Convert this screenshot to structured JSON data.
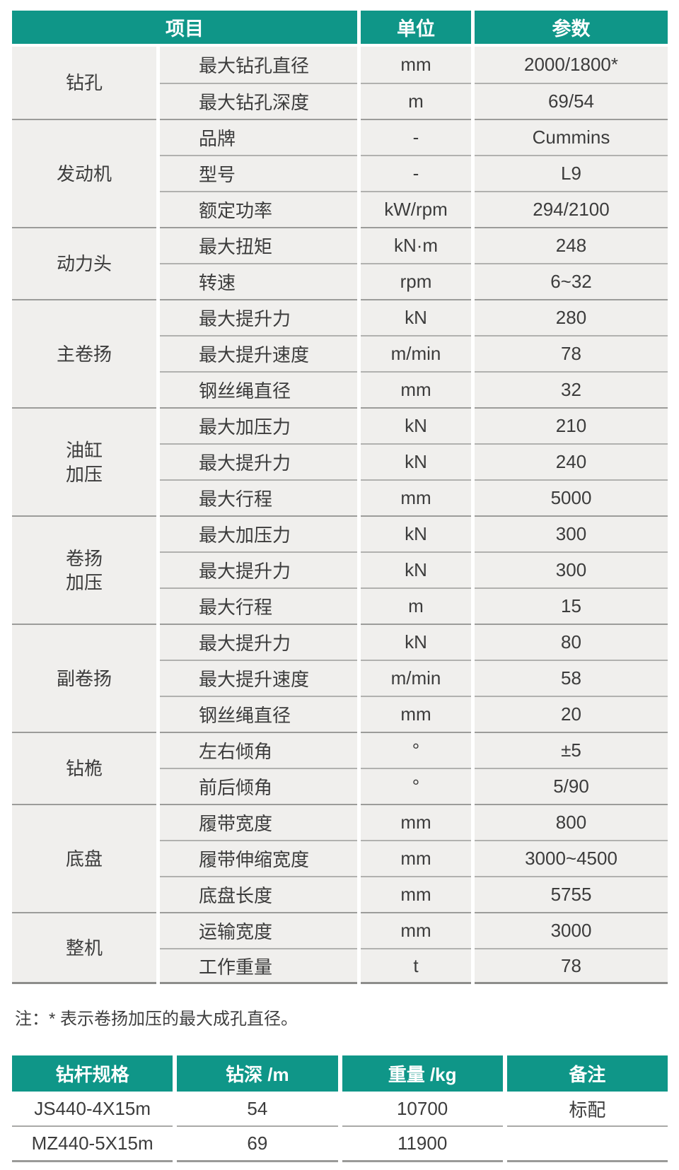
{
  "theme": {
    "header_bg": "#0f9688",
    "header_text": "#ffffff",
    "body_bg": "#f0efed",
    "text": "#3c3c3c",
    "row_line": "#b1b1af",
    "group_line": "#9c9c9a",
    "bottom_line": "#8d8d8b"
  },
  "spec_table": {
    "headers": {
      "item": "项目",
      "unit": "单位",
      "value": "参数"
    },
    "groups": [
      {
        "name": "钻孔",
        "rows": [
          {
            "label": "最大钻孔直径",
            "unit": "mm",
            "value": "2000/1800*"
          },
          {
            "label": "最大钻孔深度",
            "unit": "m",
            "value": "69/54"
          }
        ]
      },
      {
        "name": "发动机",
        "rows": [
          {
            "label": "品牌",
            "unit": "-",
            "value": "Cummins"
          },
          {
            "label": "型号",
            "unit": "-",
            "value": "L9"
          },
          {
            "label": "额定功率",
            "unit": "kW/rpm",
            "value": "294/2100"
          }
        ]
      },
      {
        "name": "动力头",
        "rows": [
          {
            "label": "最大扭矩",
            "unit": "kN·m",
            "value": "248"
          },
          {
            "label": "转速",
            "unit": "rpm",
            "value": "6~32"
          }
        ]
      },
      {
        "name": "主卷扬",
        "rows": [
          {
            "label": "最大提升力",
            "unit": "kN",
            "value": "280"
          },
          {
            "label": "最大提升速度",
            "unit": "m/min",
            "value": "78"
          },
          {
            "label": "钢丝绳直径",
            "unit": "mm",
            "value": "32"
          }
        ]
      },
      {
        "name": "油缸\n加压",
        "rows": [
          {
            "label": "最大加压力",
            "unit": "kN",
            "value": "210"
          },
          {
            "label": "最大提升力",
            "unit": "kN",
            "value": "240"
          },
          {
            "label": "最大行程",
            "unit": "mm",
            "value": "5000"
          }
        ]
      },
      {
        "name": "卷扬\n加压",
        "rows": [
          {
            "label": "最大加压力",
            "unit": "kN",
            "value": "300"
          },
          {
            "label": "最大提升力",
            "unit": "kN",
            "value": "300"
          },
          {
            "label": "最大行程",
            "unit": "m",
            "value": "15"
          }
        ]
      },
      {
        "name": "副卷扬",
        "rows": [
          {
            "label": "最大提升力",
            "unit": "kN",
            "value": "80"
          },
          {
            "label": "最大提升速度",
            "unit": "m/min",
            "value": "58"
          },
          {
            "label": "钢丝绳直径",
            "unit": "mm",
            "value": "20"
          }
        ]
      },
      {
        "name": "钻桅",
        "rows": [
          {
            "label": "左右倾角",
            "unit": "°",
            "value": "±5"
          },
          {
            "label": "前后倾角",
            "unit": "°",
            "value": "5/90"
          }
        ]
      },
      {
        "name": "底盘",
        "rows": [
          {
            "label": "履带宽度",
            "unit": "mm",
            "value": "800"
          },
          {
            "label": "履带伸缩宽度",
            "unit": "mm",
            "value": "3000~4500"
          },
          {
            "label": "底盘长度",
            "unit": "mm",
            "value": "5755"
          }
        ]
      },
      {
        "name": "整机",
        "rows": [
          {
            "label": "运输宽度",
            "unit": "mm",
            "value": "3000"
          },
          {
            "label": "工作重量",
            "unit": "t",
            "value": "78"
          }
        ]
      }
    ]
  },
  "note": "注：* 表示卷扬加压的最大成孔直径。",
  "pipe_table": {
    "headers": [
      "钻杆规格",
      "钻深 /m",
      "重量 /kg",
      "备注"
    ],
    "rows": [
      [
        "JS440-4X15m",
        "54",
        "10700",
        "标配"
      ],
      [
        "MZ440-5X15m",
        "69",
        "11900",
        ""
      ]
    ]
  }
}
